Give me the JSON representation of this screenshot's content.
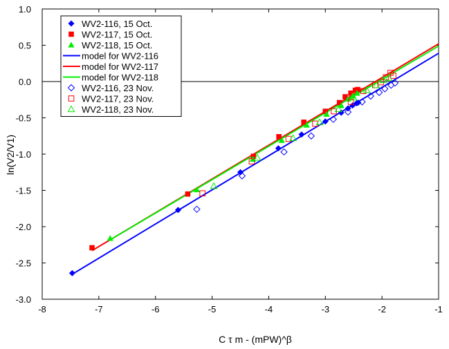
{
  "chart_data": {
    "type": "scatter",
    "xlabel": "C τ m - (mPW)^β",
    "ylabel": "ln(V2/V1)",
    "xlim": [
      -8,
      -1
    ],
    "ylim": [
      -3.0,
      1.0
    ],
    "x_ticks": [
      -8,
      -7,
      -6,
      -5,
      -4,
      -3,
      -2,
      -1
    ],
    "y_ticks": [
      1.0,
      0.5,
      0.0,
      -0.5,
      -1.0,
      -1.5,
      -2.0,
      -2.5,
      -3.0
    ],
    "x_tick_labels": [
      "-8",
      "-7",
      "-6",
      "-5",
      "-4",
      "-3",
      "-2",
      "-1"
    ],
    "y_tick_labels": [
      "1.0",
      "0.5",
      "0.0",
      "-0.5",
      "-1.0",
      "-1.5",
      "-2.0",
      "-2.5",
      "-3.0"
    ],
    "zero_line": true,
    "grid": false,
    "legend_position": "top-left",
    "series": [
      {
        "name": "WV2-116, 15 Oct.",
        "kind": "marker",
        "marker": "diamond",
        "filled": true,
        "color": "#0000ff",
        "points": [
          [
            -7.47,
            -2.64
          ],
          [
            -5.6,
            -1.77
          ],
          [
            -4.5,
            -1.25
          ],
          [
            -3.83,
            -0.92
          ],
          [
            -3.42,
            -0.73
          ],
          [
            -3.0,
            -0.55
          ],
          [
            -2.72,
            -0.43
          ],
          [
            -2.6,
            -0.37
          ],
          [
            -2.52,
            -0.33
          ],
          [
            -2.45,
            -0.3
          ],
          [
            -2.42,
            -0.29
          ]
        ]
      },
      {
        "name": "WV2-117, 15 Oct.",
        "kind": "marker",
        "marker": "square",
        "filled": true,
        "color": "#ff0000",
        "points": [
          [
            -7.12,
            -2.29
          ],
          [
            -5.43,
            -1.55
          ],
          [
            -4.27,
            -1.03
          ],
          [
            -3.82,
            -0.76
          ],
          [
            -3.38,
            -0.56
          ],
          [
            -3.0,
            -0.41
          ],
          [
            -2.75,
            -0.29
          ],
          [
            -2.65,
            -0.21
          ],
          [
            -2.55,
            -0.16
          ],
          [
            -2.47,
            -0.12
          ],
          [
            -2.43,
            -0.11
          ]
        ]
      },
      {
        "name": "WV2-118, 15 Oct.",
        "kind": "marker",
        "marker": "triangle",
        "filled": true,
        "color": "#00ee00",
        "points": [
          [
            -6.8,
            -2.16
          ],
          [
            -5.27,
            -1.49
          ],
          [
            -4.28,
            -1.07
          ],
          [
            -3.77,
            -0.81
          ],
          [
            -3.33,
            -0.6
          ],
          [
            -2.98,
            -0.45
          ],
          [
            -2.72,
            -0.33
          ],
          [
            -2.6,
            -0.24
          ],
          [
            -2.52,
            -0.2
          ],
          [
            -2.44,
            -0.16
          ]
        ]
      },
      {
        "name": "model for WV2-116",
        "kind": "line",
        "color": "#0000ff",
        "points": [
          [
            -7.48,
            -2.66
          ],
          [
            -1.0,
            0.39
          ]
        ]
      },
      {
        "name": "model for WV2-117",
        "kind": "line",
        "color": "#ff0000",
        "points": [
          [
            -7.12,
            -2.33
          ],
          [
            -1.0,
            0.52
          ]
        ]
      },
      {
        "name": "model for WV2-118",
        "kind": "line",
        "color": "#00ee00",
        "points": [
          [
            -6.82,
            -2.19
          ],
          [
            -1.0,
            0.49
          ]
        ]
      },
      {
        "name": "WV2-116, 23 Nov.",
        "kind": "marker",
        "marker": "diamond",
        "filled": false,
        "color": "#0000ff",
        "points": [
          [
            -5.27,
            -1.76
          ],
          [
            -4.47,
            -1.3
          ],
          [
            -3.73,
            -0.97
          ],
          [
            -3.25,
            -0.75
          ],
          [
            -2.86,
            -0.52
          ],
          [
            -2.6,
            -0.42
          ],
          [
            -2.35,
            -0.28
          ],
          [
            -2.2,
            -0.2
          ],
          [
            -2.05,
            -0.15
          ],
          [
            -1.95,
            -0.1
          ],
          [
            -1.84,
            -0.05
          ],
          [
            -1.77,
            -0.02
          ]
        ]
      },
      {
        "name": "WV2-117, 23 Nov.",
        "kind": "marker",
        "marker": "square",
        "filled": false,
        "color": "#ff0000",
        "points": [
          [
            -5.17,
            -1.54
          ],
          [
            -4.3,
            -1.1
          ],
          [
            -3.65,
            -0.79
          ],
          [
            -3.18,
            -0.58
          ],
          [
            -2.85,
            -0.41
          ],
          [
            -2.55,
            -0.28
          ],
          [
            -2.33,
            -0.13
          ],
          [
            -2.12,
            -0.05
          ],
          [
            -2.02,
            -0.01
          ],
          [
            -1.93,
            0.06
          ],
          [
            -1.85,
            0.12
          ],
          [
            -1.8,
            0.08
          ]
        ]
      },
      {
        "name": "WV2-118, 23 Nov.",
        "kind": "marker",
        "marker": "triangle",
        "filled": false,
        "color": "#00ee00",
        "points": [
          [
            -4.97,
            -1.44
          ],
          [
            -4.2,
            -1.05
          ],
          [
            -3.57,
            -0.78
          ],
          [
            -3.1,
            -0.56
          ],
          [
            -2.77,
            -0.38
          ],
          [
            -2.5,
            -0.22
          ],
          [
            -2.27,
            -0.12
          ],
          [
            -2.1,
            -0.05
          ],
          [
            -1.98,
            0.02
          ],
          [
            -1.88,
            0.05
          ]
        ]
      }
    ]
  }
}
